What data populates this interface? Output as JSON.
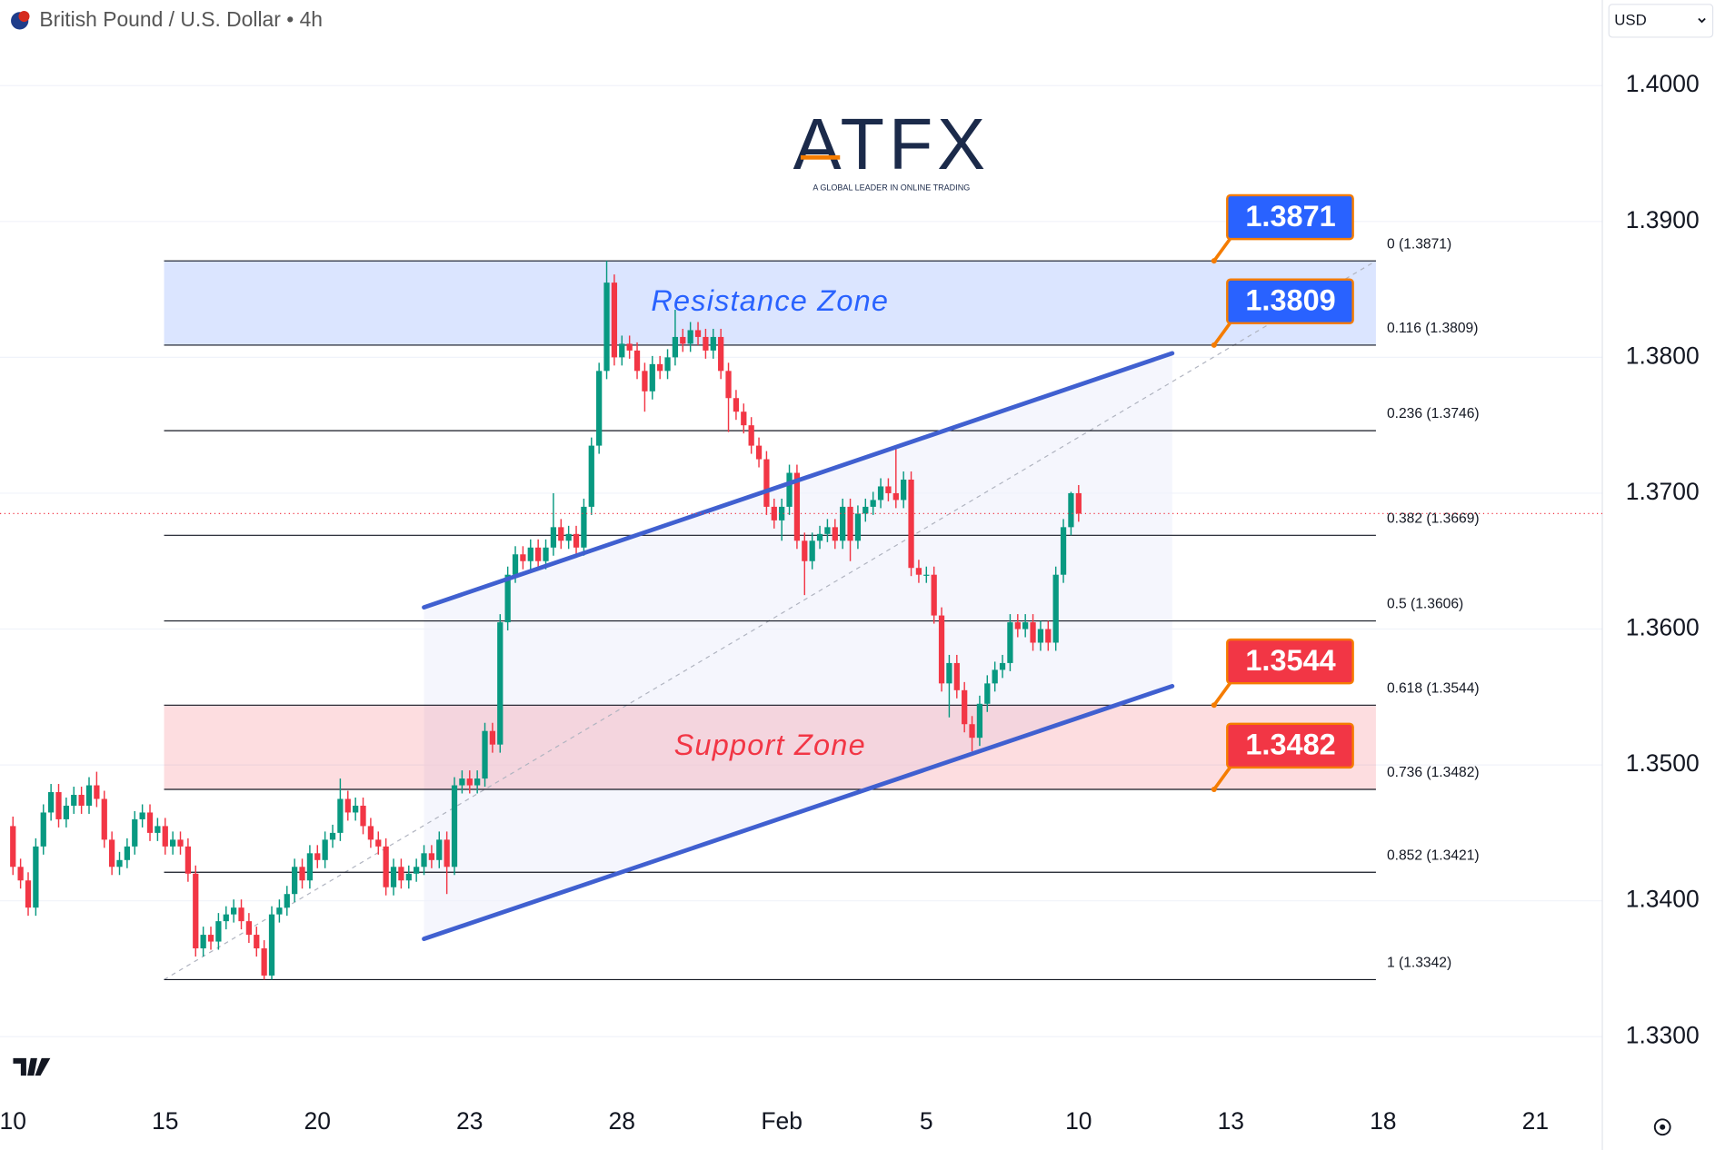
{
  "header": {
    "title": "British Pound / U.S. Dollar • 4h",
    "currency": "USD"
  },
  "logo": {
    "name": "ATFX",
    "tagline": "A GLOBAL LEADER IN ONLINE TRADING"
  },
  "chart_data": {
    "type": "candlestick",
    "up_color": "#089981",
    "down_color": "#f23645",
    "ohlc": [
      [
        1.3455,
        1.3462,
        1.3419,
        1.3425
      ],
      [
        1.3425,
        1.3431,
        1.3409,
        1.3415
      ],
      [
        1.3415,
        1.3421,
        1.3389,
        1.3395
      ],
      [
        1.3395,
        1.3446,
        1.3389,
        1.344
      ],
      [
        1.344,
        1.3471,
        1.3434,
        1.3465
      ],
      [
        1.3465,
        1.3486,
        1.3459,
        1.348
      ],
      [
        1.348,
        1.3486,
        1.3454,
        1.346
      ],
      [
        1.346,
        1.3476,
        1.3454,
        1.347
      ],
      [
        1.347,
        1.3484,
        1.3464,
        1.3478
      ],
      [
        1.3478,
        1.3484,
        1.3464,
        1.347
      ],
      [
        1.347,
        1.3491,
        1.3464,
        1.3485
      ],
      [
        1.3485,
        1.3495,
        1.3469,
        1.3475
      ],
      [
        1.3475,
        1.3481,
        1.3439,
        1.3445
      ],
      [
        1.3445,
        1.3451,
        1.3419,
        1.3425
      ],
      [
        1.3425,
        1.3436,
        1.3419,
        1.343
      ],
      [
        1.343,
        1.3446,
        1.3424,
        1.344
      ],
      [
        1.344,
        1.3466,
        1.3434,
        1.346
      ],
      [
        1.346,
        1.3471,
        1.3454,
        1.3465
      ],
      [
        1.3465,
        1.3471,
        1.3444,
        1.345
      ],
      [
        1.345,
        1.3461,
        1.3444,
        1.3455
      ],
      [
        1.3455,
        1.3461,
        1.3434,
        1.344
      ],
      [
        1.344,
        1.3451,
        1.3434,
        1.3445
      ],
      [
        1.3445,
        1.3451,
        1.3434,
        1.344
      ],
      [
        1.344,
        1.3446,
        1.3414,
        1.342
      ],
      [
        1.342,
        1.3426,
        1.3359,
        1.3365
      ],
      [
        1.3365,
        1.3381,
        1.3359,
        1.3375
      ],
      [
        1.3375,
        1.3381,
        1.3364,
        1.337
      ],
      [
        1.337,
        1.3391,
        1.3364,
        1.3385
      ],
      [
        1.3385,
        1.3396,
        1.3379,
        1.339
      ],
      [
        1.339,
        1.3401,
        1.3384,
        1.3395
      ],
      [
        1.3395,
        1.3401,
        1.3379,
        1.3385
      ],
      [
        1.3385,
        1.3391,
        1.3369,
        1.3375
      ],
      [
        1.3375,
        1.3381,
        1.3359,
        1.3365
      ],
      [
        1.3365,
        1.3371,
        1.3342,
        1.3345
      ],
      [
        1.3345,
        1.3396,
        1.3342,
        1.339
      ],
      [
        1.339,
        1.3401,
        1.3384,
        1.3395
      ],
      [
        1.3395,
        1.3411,
        1.3389,
        1.3405
      ],
      [
        1.3405,
        1.3431,
        1.3399,
        1.3425
      ],
      [
        1.3425,
        1.3431,
        1.3409,
        1.3415
      ],
      [
        1.3415,
        1.3441,
        1.3409,
        1.3435
      ],
      [
        1.3435,
        1.3441,
        1.3424,
        1.343
      ],
      [
        1.343,
        1.3451,
        1.3424,
        1.3445
      ],
      [
        1.3445,
        1.3456,
        1.3439,
        1.345
      ],
      [
        1.345,
        1.349,
        1.3444,
        1.3475
      ],
      [
        1.3475,
        1.3481,
        1.3459,
        1.3465
      ],
      [
        1.3465,
        1.3476,
        1.3459,
        1.347
      ],
      [
        1.347,
        1.3476,
        1.3449,
        1.3455
      ],
      [
        1.3455,
        1.3461,
        1.3439,
        1.3445
      ],
      [
        1.3445,
        1.3451,
        1.3434,
        1.344
      ],
      [
        1.344,
        1.3446,
        1.3404,
        1.341
      ],
      [
        1.341,
        1.3431,
        1.3404,
        1.3425
      ],
      [
        1.3425,
        1.3431,
        1.3409,
        1.3415
      ],
      [
        1.3415,
        1.3426,
        1.3409,
        1.342
      ],
      [
        1.342,
        1.3431,
        1.3414,
        1.3425
      ],
      [
        1.3425,
        1.3441,
        1.3419,
        1.3435
      ],
      [
        1.3435,
        1.3441,
        1.3424,
        1.343
      ],
      [
        1.343,
        1.3451,
        1.3424,
        1.3445
      ],
      [
        1.3445,
        1.3451,
        1.3405,
        1.3425
      ],
      [
        1.3425,
        1.3491,
        1.3419,
        1.3485
      ],
      [
        1.3485,
        1.3496,
        1.3479,
        1.349
      ],
      [
        1.349,
        1.3496,
        1.3479,
        1.3485
      ],
      [
        1.3485,
        1.3496,
        1.3479,
        1.349
      ],
      [
        1.349,
        1.3531,
        1.3484,
        1.3525
      ],
      [
        1.3525,
        1.3531,
        1.3509,
        1.3515
      ],
      [
        1.3515,
        1.3611,
        1.3509,
        1.3605
      ],
      [
        1.3605,
        1.3646,
        1.3599,
        1.364
      ],
      [
        1.364,
        1.3661,
        1.3634,
        1.3655
      ],
      [
        1.3655,
        1.3661,
        1.3644,
        1.365
      ],
      [
        1.365,
        1.3666,
        1.3644,
        1.366
      ],
      [
        1.366,
        1.3666,
        1.3644,
        1.365
      ],
      [
        1.365,
        1.3666,
        1.3644,
        1.366
      ],
      [
        1.366,
        1.37,
        1.3654,
        1.3675
      ],
      [
        1.3675,
        1.3681,
        1.3659,
        1.3665
      ],
      [
        1.3665,
        1.3676,
        1.3659,
        1.367
      ],
      [
        1.367,
        1.3676,
        1.3654,
        1.366
      ],
      [
        1.366,
        1.3696,
        1.3654,
        1.369
      ],
      [
        1.369,
        1.3741,
        1.3684,
        1.3735
      ],
      [
        1.3735,
        1.3796,
        1.3729,
        1.379
      ],
      [
        1.379,
        1.3871,
        1.3784,
        1.3855
      ],
      [
        1.3855,
        1.3861,
        1.3794,
        1.38
      ],
      [
        1.38,
        1.3816,
        1.3794,
        1.381
      ],
      [
        1.381,
        1.3816,
        1.3799,
        1.3805
      ],
      [
        1.3805,
        1.3811,
        1.3784,
        1.379
      ],
      [
        1.379,
        1.3796,
        1.376,
        1.3775
      ],
      [
        1.3775,
        1.3801,
        1.3769,
        1.3795
      ],
      [
        1.3795,
        1.3801,
        1.3784,
        1.379
      ],
      [
        1.379,
        1.3806,
        1.3784,
        1.38
      ],
      [
        1.38,
        1.3835,
        1.3794,
        1.3815
      ],
      [
        1.3815,
        1.3821,
        1.3804,
        1.381
      ],
      [
        1.381,
        1.3826,
        1.3804,
        1.382
      ],
      [
        1.382,
        1.3826,
        1.3809,
        1.3815
      ],
      [
        1.3815,
        1.3821,
        1.3799,
        1.3805
      ],
      [
        1.3805,
        1.3821,
        1.3799,
        1.3815
      ],
      [
        1.3815,
        1.3821,
        1.3784,
        1.379
      ],
      [
        1.379,
        1.3796,
        1.3745,
        1.377
      ],
      [
        1.377,
        1.3776,
        1.3754,
        1.376
      ],
      [
        1.376,
        1.3766,
        1.3744,
        1.375
      ],
      [
        1.375,
        1.3756,
        1.3729,
        1.3735
      ],
      [
        1.3735,
        1.3741,
        1.3719,
        1.3725
      ],
      [
        1.3725,
        1.3731,
        1.3684,
        1.369
      ],
      [
        1.369,
        1.3696,
        1.3674,
        1.368
      ],
      [
        1.368,
        1.3696,
        1.3665,
        1.369
      ],
      [
        1.369,
        1.3721,
        1.3684,
        1.3715
      ],
      [
        1.3715,
        1.3721,
        1.3659,
        1.3665
      ],
      [
        1.3665,
        1.3671,
        1.3625,
        1.365
      ],
      [
        1.365,
        1.3671,
        1.3644,
        1.3665
      ],
      [
        1.3665,
        1.3676,
        1.3659,
        1.367
      ],
      [
        1.367,
        1.3681,
        1.3664,
        1.3675
      ],
      [
        1.3675,
        1.3681,
        1.3659,
        1.3665
      ],
      [
        1.3665,
        1.3696,
        1.3659,
        1.369
      ],
      [
        1.369,
        1.3696,
        1.365,
        1.3665
      ],
      [
        1.3665,
        1.3691,
        1.3659,
        1.3685
      ],
      [
        1.3685,
        1.3696,
        1.3679,
        1.369
      ],
      [
        1.369,
        1.3701,
        1.3684,
        1.3695
      ],
      [
        1.3695,
        1.3711,
        1.3689,
        1.3705
      ],
      [
        1.3705,
        1.3711,
        1.3694,
        1.37
      ],
      [
        1.37,
        1.3735,
        1.3689,
        1.3695
      ],
      [
        1.3695,
        1.3716,
        1.3689,
        1.371
      ],
      [
        1.371,
        1.3716,
        1.3639,
        1.3645
      ],
      [
        1.3645,
        1.3651,
        1.3634,
        1.364
      ],
      [
        1.364,
        1.3646,
        1.3634,
        1.364
      ],
      [
        1.364,
        1.3646,
        1.3604,
        1.361
      ],
      [
        1.361,
        1.3616,
        1.3554,
        1.356
      ],
      [
        1.356,
        1.3581,
        1.3535,
        1.3575
      ],
      [
        1.3575,
        1.3581,
        1.3549,
        1.3555
      ],
      [
        1.3555,
        1.3561,
        1.3524,
        1.353
      ],
      [
        1.353,
        1.3536,
        1.351,
        1.352
      ],
      [
        1.352,
        1.3551,
        1.3514,
        1.3545
      ],
      [
        1.3545,
        1.3566,
        1.3539,
        1.356
      ],
      [
        1.356,
        1.3576,
        1.3554,
        1.357
      ],
      [
        1.357,
        1.3581,
        1.3564,
        1.3575
      ],
      [
        1.3575,
        1.3611,
        1.3569,
        1.3605
      ],
      [
        1.3605,
        1.3611,
        1.3594,
        1.36
      ],
      [
        1.36,
        1.3611,
        1.3594,
        1.3605
      ],
      [
        1.3605,
        1.3611,
        1.3584,
        1.359
      ],
      [
        1.359,
        1.3606,
        1.3584,
        1.36
      ],
      [
        1.36,
        1.3606,
        1.3584,
        1.359
      ],
      [
        1.359,
        1.3646,
        1.3584,
        1.364
      ],
      [
        1.364,
        1.3681,
        1.3634,
        1.3675
      ],
      [
        1.3675,
        1.3701,
        1.3669,
        1.37
      ],
      [
        1.37,
        1.3706,
        1.3679,
        1.3685
      ]
    ],
    "xlim": [
      -1.7,
      208.8
    ],
    "xticks": [
      {
        "value": 0,
        "label": "10"
      },
      {
        "value": 20,
        "label": "15"
      },
      {
        "value": 40,
        "label": "20"
      },
      {
        "value": 60,
        "label": "23"
      },
      {
        "value": 80,
        "label": "28"
      },
      {
        "value": 101,
        "label": "Feb"
      },
      {
        "value": 120,
        "label": "5"
      },
      {
        "value": 140,
        "label": "10"
      },
      {
        "value": 160,
        "label": "13"
      },
      {
        "value": 180,
        "label": "18"
      },
      {
        "value": 200,
        "label": "21"
      }
    ],
    "ylim": [
      1.3252,
      1.4063
    ],
    "yticks": [
      {
        "value": 1.4,
        "label": "1.4000"
      },
      {
        "value": 1.39,
        "label": "1.3900"
      },
      {
        "value": 1.38,
        "label": "1.3800"
      },
      {
        "value": 1.37,
        "label": "1.3700"
      },
      {
        "value": 1.36,
        "label": "1.3600"
      },
      {
        "value": 1.35,
        "label": "1.3500"
      },
      {
        "value": 1.34,
        "label": "1.3400"
      },
      {
        "value": 1.33,
        "label": "1.3300"
      }
    ],
    "grid": true,
    "fib_levels": [
      {
        "value": 1.3871,
        "label": "0 (1.3871)"
      },
      {
        "value": 1.3809,
        "label": "0.116 (1.3809)"
      },
      {
        "value": 1.3746,
        "label": "0.236 (1.3746)"
      },
      {
        "value": 1.3669,
        "label": "0.382 (1.3669)"
      },
      {
        "value": 1.3606,
        "label": "0.5 (1.3606)"
      },
      {
        "value": 1.3544,
        "label": "0.618 (1.3544)"
      },
      {
        "value": 1.3482,
        "label": "0.736 (1.3482)"
      },
      {
        "value": 1.3421,
        "label": "0.852 (1.3421)"
      },
      {
        "value": 1.3342,
        "label": "1 (1.3342)"
      }
    ],
    "zones": [
      {
        "label": "Resistance Zone",
        "top": 1.3871,
        "bottom": 1.3809,
        "color": "#2962ff"
      },
      {
        "label": "Support Zone",
        "top": 1.3544,
        "bottom": 1.3482,
        "color": "#f23645"
      }
    ],
    "trendlines": [
      {
        "x": [
          54,
          152.3
        ],
        "y": [
          1.3616,
          1.3803
        ]
      },
      {
        "x": [
          54,
          152.3
        ],
        "y": [
          1.3372,
          1.3558
        ]
      }
    ],
    "price_tags": [
      {
        "value": 1.3871,
        "color": "#2962ff"
      },
      {
        "value": 1.3809,
        "color": "#2962ff"
      },
      {
        "value": 1.3544,
        "color": "#f23645"
      },
      {
        "value": 1.3482,
        "color": "#f23645"
      }
    ]
  }
}
